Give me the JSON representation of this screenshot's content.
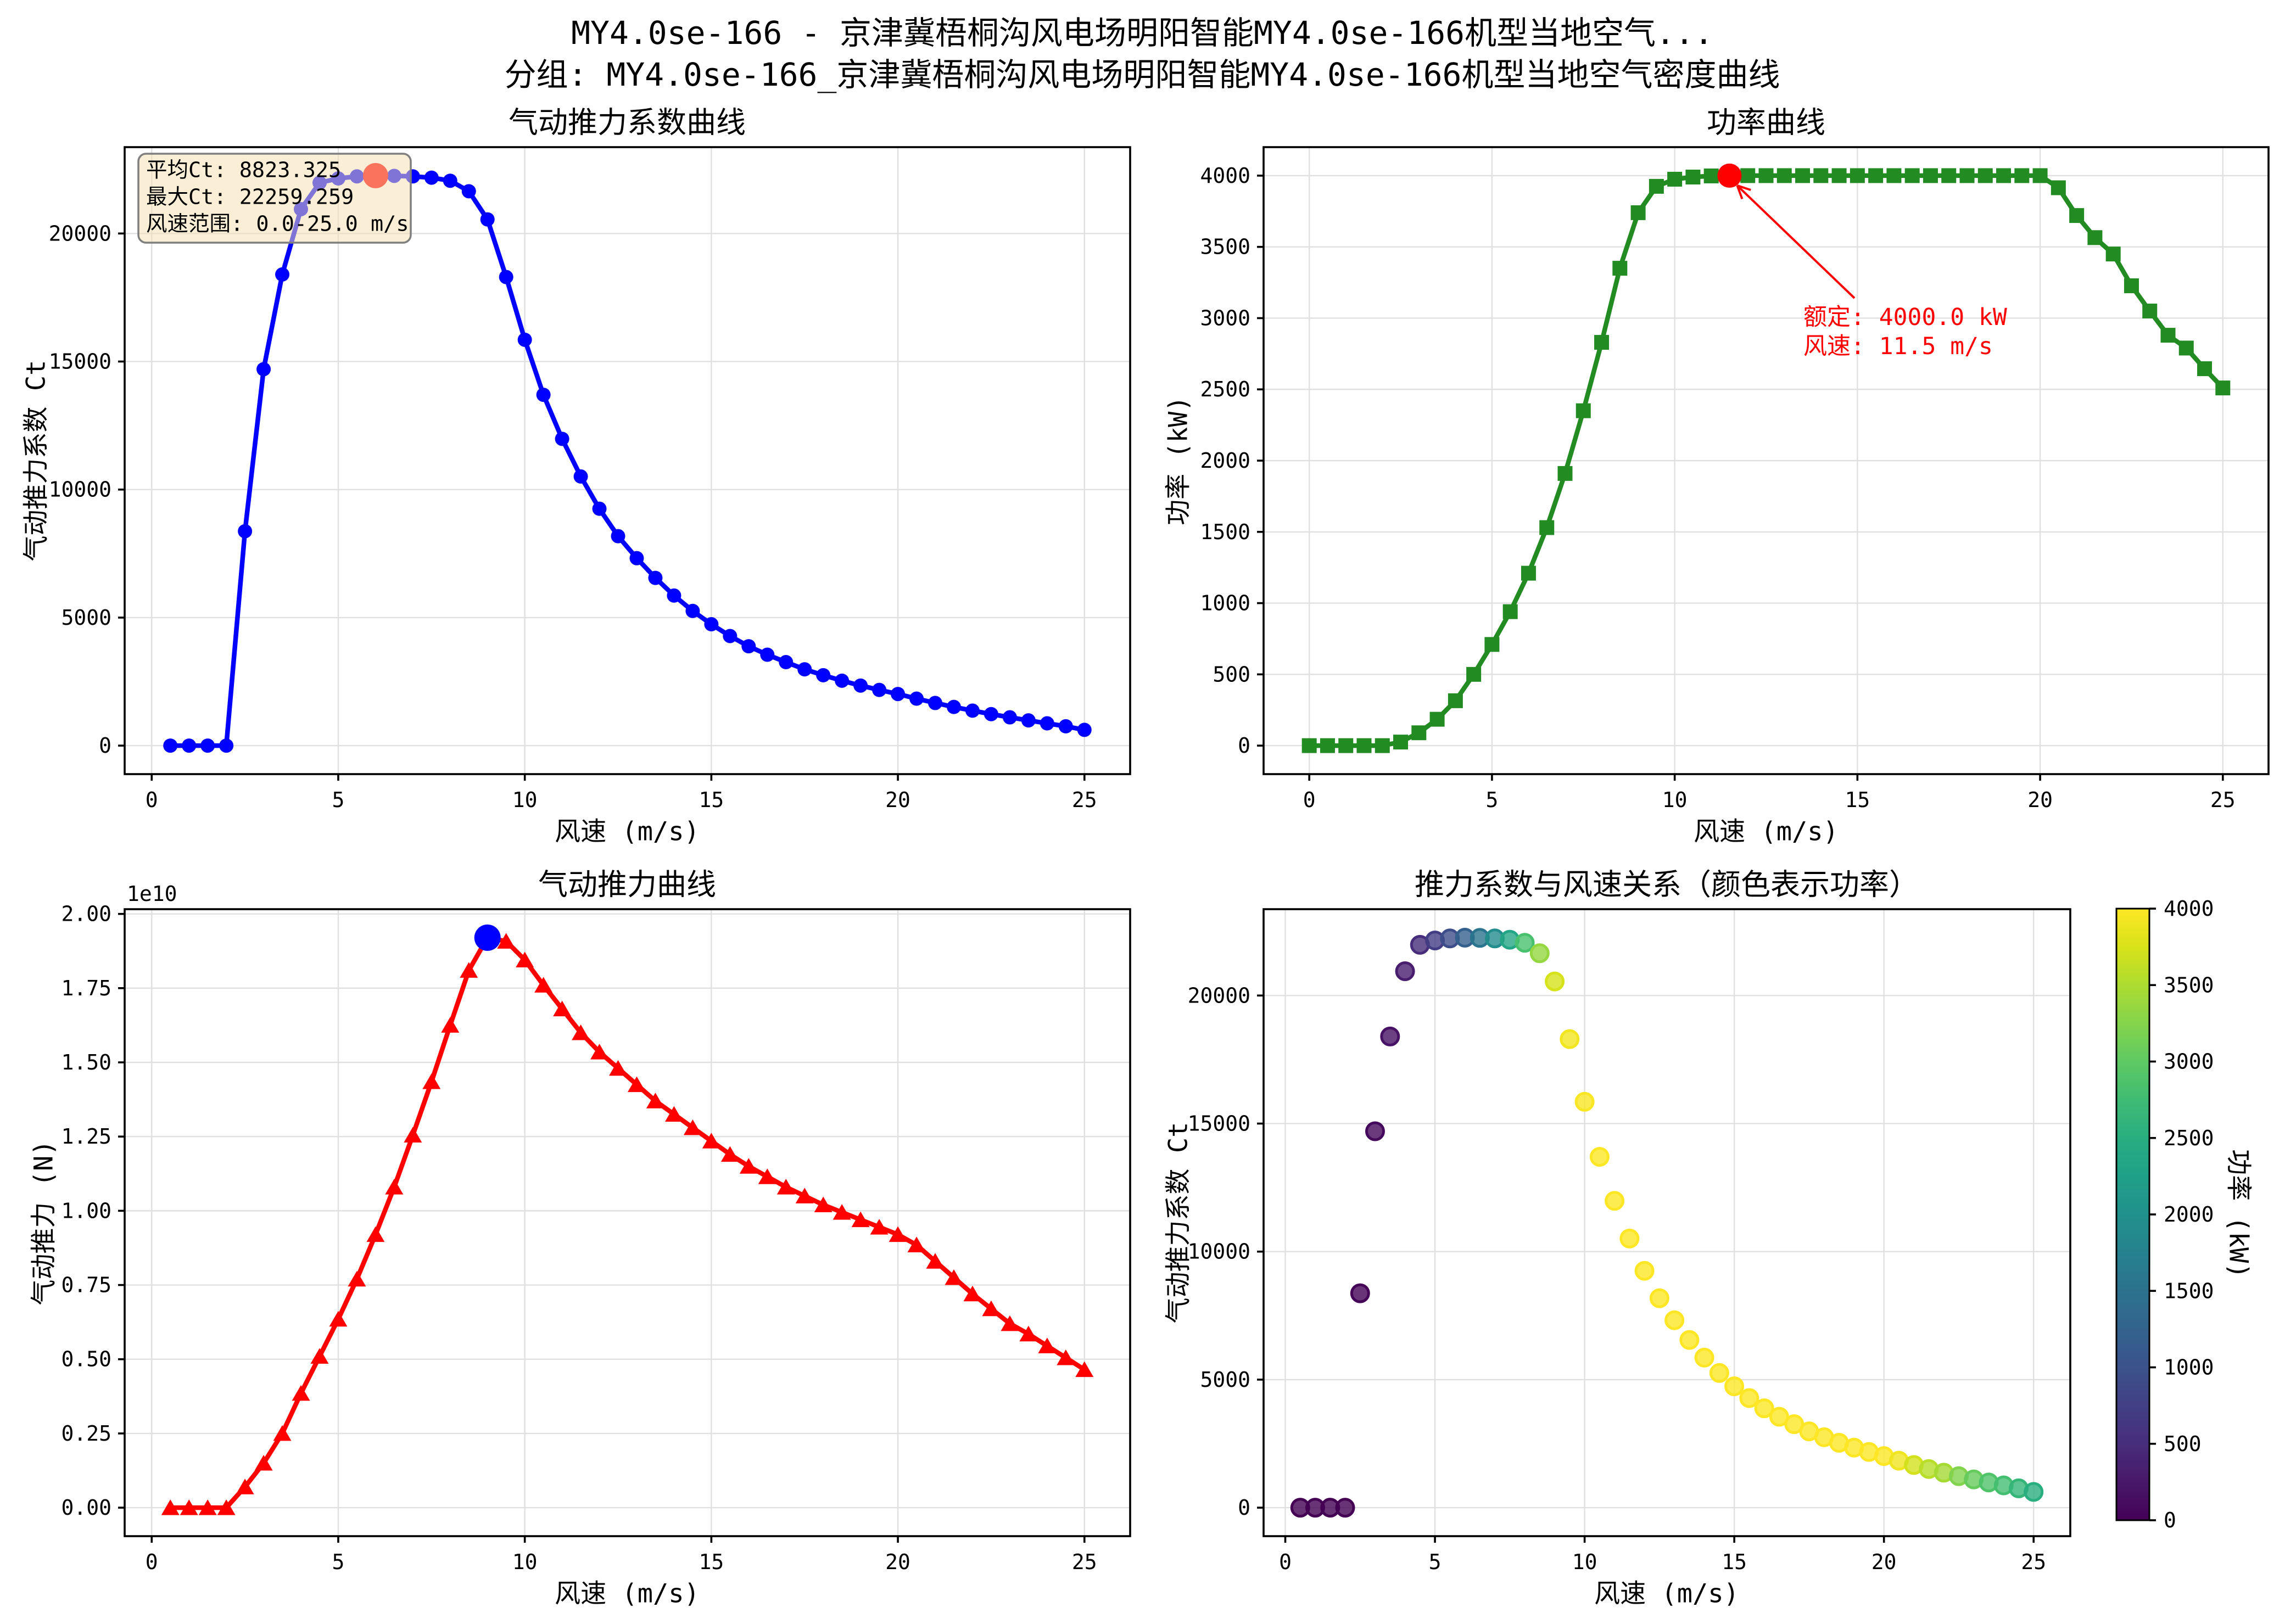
{
  "figure": {
    "suptitle_line1": "MY4.0se-166 - 京津冀梧桐沟风电场明阳智能MY4.0se-166机型当地空气...",
    "suptitle_line2": "分组: MY4.0se-166_京津冀梧桐沟风电场明阳智能MY4.0se-166机型当地空气密度曲线",
    "background": "#ffffff",
    "text_color": "#000000"
  },
  "chart_data": [
    {
      "id": "ct-curve",
      "type": "line",
      "title": "气动推力系数曲线",
      "xlabel": "风速 (m/s)",
      "ylabel": "气动推力系数 Ct",
      "line_color": "#0000ff",
      "marker": "circle",
      "x": [
        0.5,
        1.0,
        1.5,
        2.0,
        2.5,
        3.0,
        3.5,
        4.0,
        4.5,
        5.0,
        5.5,
        6.0,
        6.5,
        7.0,
        7.5,
        8.0,
        8.5,
        9.0,
        9.5,
        10.0,
        10.5,
        11.0,
        11.5,
        12.0,
        12.5,
        13.0,
        13.5,
        14.0,
        14.5,
        15.0,
        15.5,
        16.0,
        16.5,
        17.0,
        17.5,
        18.0,
        18.5,
        19.0,
        19.5,
        20.0,
        20.5,
        21.0,
        21.5,
        22.0,
        22.5,
        23.0,
        23.5,
        24.0,
        24.5,
        25.0
      ],
      "y": [
        0,
        0,
        0,
        0,
        8372,
        14700,
        18400,
        20950,
        21980,
        22150,
        22230,
        22259.259,
        22250,
        22230,
        22180,
        22060,
        21650,
        20550,
        18300,
        15850,
        13700,
        11980,
        10510,
        9250,
        8180,
        7320,
        6550,
        5860,
        5260,
        4740,
        4280,
        3880,
        3550,
        3260,
        2980,
        2750,
        2535,
        2345,
        2175,
        2015,
        1835,
        1665,
        1510,
        1365,
        1230,
        1105,
        985,
        870,
        755,
        615
      ],
      "xlim": [
        -0.725,
        26.225
      ],
      "ylim": [
        -1112.963,
        23372.222
      ],
      "xticks": [
        0,
        5,
        10,
        15,
        20,
        25
      ],
      "xtick_labels": [
        "0",
        "5",
        "10",
        "15",
        "20",
        "25"
      ],
      "yticks": [
        0,
        5000,
        10000,
        15000,
        20000
      ],
      "ytick_labels": [
        "0",
        "5000",
        "10000",
        "15000",
        "20000"
      ],
      "grid": true,
      "highlight": {
        "x": 6.0,
        "y": 22259.259,
        "color": "#ff0000"
      },
      "infobox": {
        "lines": [
          "平均Ct: 8823.325",
          "最大Ct: 22259.259",
          "风速范围: 0.0-25.0 m/s"
        ],
        "facecolor": "#f5deb3",
        "alpha": 0.52,
        "edgecolor": "#7f7f7f"
      },
      "stats": {
        "mean_ct": 8823.325,
        "max_ct": 22259.259,
        "wind_range": "0.0-25.0 m/s"
      }
    },
    {
      "id": "power-curve",
      "type": "line",
      "title": "功率曲线",
      "xlabel": "风速 (m/s)",
      "ylabel": "功率 (kW)",
      "line_color": "#228b22",
      "marker": "square",
      "x": [
        0.0,
        0.5,
        1.0,
        1.5,
        2.0,
        2.5,
        3.0,
        3.5,
        4.0,
        4.5,
        5.0,
        5.5,
        6.0,
        6.5,
        7.0,
        7.5,
        8.0,
        8.5,
        9.0,
        9.5,
        10.0,
        10.5,
        11.0,
        11.5,
        12.0,
        12.5,
        13.0,
        13.5,
        14.0,
        14.5,
        15.0,
        15.5,
        16.0,
        16.5,
        17.0,
        17.5,
        18.0,
        18.5,
        19.0,
        19.5,
        20.0,
        20.5,
        21.0,
        21.5,
        22.0,
        22.5,
        23.0,
        23.5,
        24.0,
        24.5,
        25.0
      ],
      "y": [
        0,
        0,
        0,
        0,
        0,
        25,
        90,
        185,
        315,
        500,
        710,
        940,
        1210,
        1530,
        1910,
        2350,
        2830,
        3350,
        3740,
        3925,
        3975,
        3990,
        3998,
        4000,
        4000,
        4000,
        4000,
        4000,
        4000,
        4000,
        4000,
        4000,
        4000,
        4000,
        4000,
        4000,
        4000,
        4000,
        4000,
        4000,
        4000,
        3915,
        3720,
        3565,
        3450,
        3227,
        3050,
        2880,
        2790,
        2645,
        2510
      ],
      "xlim": [
        -1.25,
        26.25
      ],
      "ylim": [
        -200,
        4200
      ],
      "xticks": [
        0,
        5,
        10,
        15,
        20,
        25
      ],
      "xtick_labels": [
        "0",
        "5",
        "10",
        "15",
        "20",
        "25"
      ],
      "yticks": [
        0,
        500,
        1000,
        1500,
        2000,
        2500,
        3000,
        3500,
        4000
      ],
      "ytick_labels": [
        "0",
        "500",
        "1000",
        "1500",
        "2000",
        "2500",
        "3000",
        "3500",
        "4000"
      ],
      "grid": true,
      "highlight": {
        "x": 11.5,
        "y": 4000,
        "color": "#ff0000"
      },
      "annotation": {
        "lines": [
          "额定: 4000.0 kW",
          "风速: 11.5 m/s"
        ],
        "color": "#ff0000",
        "text_xy": [
          13.5,
          3000
        ],
        "point_xy": [
          11.5,
          4000
        ]
      },
      "rated_power_kw": 4000.0,
      "rated_wind_ms": 11.5
    },
    {
      "id": "thrust-curve",
      "type": "line",
      "title": "气动推力曲线",
      "xlabel": "风速 (m/s)",
      "ylabel": "气动推力 (N)",
      "line_color": "#ff0000",
      "marker": "triangle",
      "x": [
        0.5,
        1.0,
        1.5,
        2.0,
        2.5,
        3.0,
        3.5,
        4.0,
        4.5,
        5.0,
        5.5,
        6.0,
        6.5,
        7.0,
        7.5,
        8.0,
        8.5,
        9.0,
        9.5,
        10.0,
        10.5,
        11.0,
        11.5,
        12.0,
        12.5,
        13.0,
        13.5,
        14.0,
        14.5,
        15.0,
        15.5,
        16.0,
        16.5,
        17.0,
        17.5,
        18.0,
        18.5,
        19.0,
        19.5,
        20.0,
        20.5,
        21.0,
        21.5,
        22.0,
        22.5,
        23.0,
        23.5,
        24.0,
        24.5,
        25.0
      ],
      "y": [
        0,
        0,
        0,
        0,
        700000000.0,
        1500000000.0,
        2500000000.0,
        3850000000.0,
        5100000000.0,
        6350000000.0,
        7700000000.0,
        9200000000.0,
        10800000000.0,
        12550000000.0,
        14350000000.0,
        16250000000.0,
        18100000000.0,
        19200000000.0,
        19080000000.0,
        18450000000.0,
        17600000000.0,
        16800000000.0,
        16000000000.0,
        15350000000.0,
        14800000000.0,
        14250000000.0,
        13700000000.0,
        13250000000.0,
        12800000000.0,
        12350000000.0,
        11900000000.0,
        11500000000.0,
        11150000000.0,
        10800000000.0,
        10500000000.0,
        10200000000.0,
        9950000000.0,
        9700000000.0,
        9450000000.0,
        9200000000.0,
        8850000000.0,
        8300000000.0,
        7750000000.0,
        7200000000.0,
        6700000000.0,
        6200000000.0,
        5850000000.0,
        5450000000.0,
        5050000000.0,
        4650000000.0
      ],
      "xlim": [
        -0.725,
        26.225
      ],
      "ylim": [
        -960000000.0,
        20160000000.0
      ],
      "xticks": [
        0,
        5,
        10,
        15,
        20,
        25
      ],
      "xtick_labels": [
        "0",
        "5",
        "10",
        "15",
        "20",
        "25"
      ],
      "yticks": [
        0,
        2500000000.0,
        5000000000.0,
        7500000000.0,
        10000000000.0,
        12500000000.0,
        15000000000.0,
        17500000000.0,
        20000000000.0
      ],
      "ytick_labels": [
        "0.00",
        "0.25",
        "0.50",
        "0.75",
        "1.00",
        "1.25",
        "1.50",
        "1.75",
        "2.00"
      ],
      "offset_text": "1e10",
      "grid": true,
      "highlight": {
        "x": 9.0,
        "y": 19200000000.0,
        "color": "#0000ff"
      }
    },
    {
      "id": "ct-wind-scatter",
      "type": "scatter",
      "title": "推力系数与风速关系（颜色表示功率）",
      "xlabel": "风速 (m/s)",
      "ylabel": "气动推力系数 Ct",
      "x": [
        0.5,
        1.0,
        1.5,
        2.0,
        2.5,
        3.0,
        3.5,
        4.0,
        4.5,
        5.0,
        5.5,
        6.0,
        6.5,
        7.0,
        7.5,
        8.0,
        8.5,
        9.0,
        9.5,
        10.0,
        10.5,
        11.0,
        11.5,
        12.0,
        12.5,
        13.0,
        13.5,
        14.0,
        14.5,
        15.0,
        15.5,
        16.0,
        16.5,
        17.0,
        17.5,
        18.0,
        18.5,
        19.0,
        19.5,
        20.0,
        20.5,
        21.0,
        21.5,
        22.0,
        22.5,
        23.0,
        23.5,
        24.0,
        24.5,
        25.0
      ],
      "y": [
        0,
        0,
        0,
        0,
        8372,
        14700,
        18400,
        20950,
        21980,
        22150,
        22230,
        22259.259,
        22250,
        22230,
        22180,
        22060,
        21650,
        20550,
        18300,
        15850,
        13700,
        11980,
        10510,
        9250,
        8180,
        7320,
        6550,
        5860,
        5260,
        4740,
        4280,
        3880,
        3550,
        3260,
        2980,
        2750,
        2535,
        2345,
        2175,
        2015,
        1835,
        1665,
        1510,
        1365,
        1230,
        1105,
        985,
        870,
        755,
        615
      ],
      "color_values": [
        0,
        0,
        0,
        0,
        25,
        90,
        185,
        315,
        500,
        710,
        940,
        1210,
        1530,
        1910,
        2350,
        2830,
        3350,
        3740,
        3925,
        3975,
        3990,
        3998,
        4000,
        4000,
        4000,
        4000,
        4000,
        4000,
        4000,
        4000,
        4000,
        4000,
        4000,
        4000,
        4000,
        4000,
        4000,
        4000,
        4000,
        4000,
        3915,
        3720,
        3565,
        3450,
        3227,
        3050,
        2880,
        2790,
        2645,
        2510
      ],
      "colormap": "viridis",
      "point_alpha": 0.8,
      "xlim": [
        -0.725,
        26.225
      ],
      "ylim": [
        -1112.963,
        23372.222
      ],
      "xticks": [
        0,
        5,
        10,
        15,
        20,
        25
      ],
      "xtick_labels": [
        "0",
        "5",
        "10",
        "15",
        "20",
        "25"
      ],
      "yticks": [
        0,
        5000,
        10000,
        15000,
        20000
      ],
      "ytick_labels": [
        "0",
        "5000",
        "10000",
        "15000",
        "20000"
      ],
      "grid": true,
      "colorbar": {
        "label": "功率 (kW)",
        "vmin": 0,
        "vmax": 4000,
        "ticks": [
          0,
          500,
          1000,
          1500,
          2000,
          2500,
          3000,
          3500,
          4000
        ],
        "tick_labels": [
          "0",
          "500",
          "1000",
          "1500",
          "2000",
          "2500",
          "3000",
          "3500",
          "4000"
        ]
      }
    }
  ]
}
